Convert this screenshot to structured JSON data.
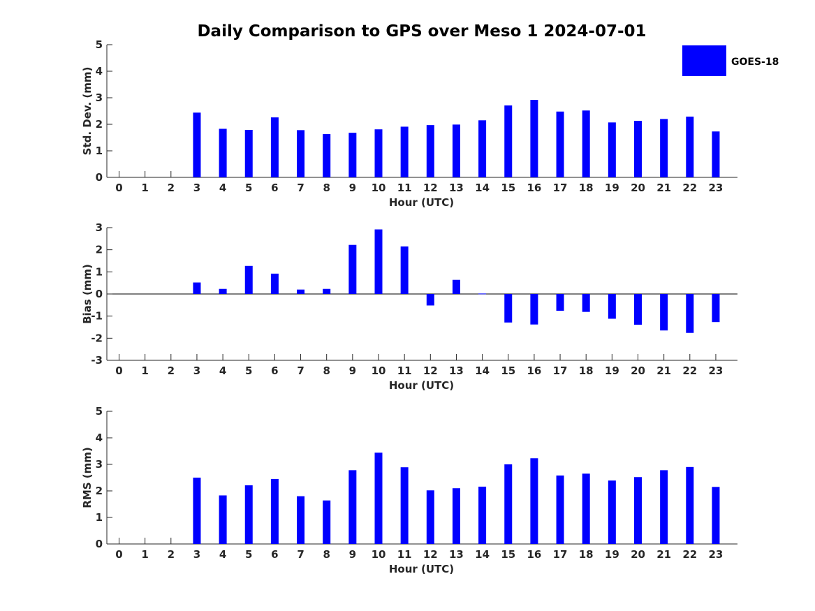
{
  "chart_data": [
    {
      "type": "bar",
      "title": "Daily Comparison to GPS over Meso 1 2024-07-01",
      "ylabel": "Std. Dev. (mm)",
      "xlabel": "Hour (UTC)",
      "ylim": [
        0,
        5
      ],
      "yticks": [
        0,
        1,
        2,
        3,
        4,
        5
      ],
      "categories": [
        "0",
        "1",
        "2",
        "3",
        "4",
        "5",
        "6",
        "7",
        "8",
        "9",
        "10",
        "11",
        "12",
        "13",
        "14",
        "15",
        "16",
        "17",
        "18",
        "19",
        "20",
        "21",
        "22",
        "23"
      ],
      "series": [
        {
          "name": "GOES-18",
          "color": "#0000ff",
          "values": [
            null,
            null,
            null,
            2.44,
            1.83,
            1.79,
            2.26,
            1.78,
            1.63,
            1.68,
            1.81,
            1.91,
            1.97,
            1.99,
            2.15,
            2.71,
            2.92,
            2.48,
            2.52,
            2.07,
            2.13,
            2.2,
            2.29,
            1.73
          ]
        }
      ],
      "legend": "top-right"
    },
    {
      "type": "bar",
      "title": "",
      "ylabel": "Bias (mm)",
      "xlabel": "Hour (UTC)",
      "ylim": [
        -3,
        3
      ],
      "yticks": [
        -3,
        -2,
        -1,
        0,
        1,
        2,
        3
      ],
      "categories": [
        "0",
        "1",
        "2",
        "3",
        "4",
        "5",
        "6",
        "7",
        "8",
        "9",
        "10",
        "11",
        "12",
        "13",
        "14",
        "15",
        "16",
        "17",
        "18",
        "19",
        "20",
        "21",
        "22",
        "23"
      ],
      "series": [
        {
          "name": "GOES-18",
          "color": "#0000ff",
          "values": [
            null,
            null,
            null,
            0.52,
            0.23,
            1.27,
            0.92,
            0.2,
            0.23,
            2.22,
            2.92,
            2.15,
            -0.52,
            0.64,
            0.02,
            -1.29,
            -1.38,
            -0.76,
            -0.81,
            -1.12,
            -1.39,
            -1.65,
            -1.76,
            -1.27
          ]
        }
      ]
    },
    {
      "type": "bar",
      "title": "",
      "ylabel": "RMS (mm)",
      "xlabel": "Hour (UTC)",
      "ylim": [
        0,
        5
      ],
      "yticks": [
        0,
        1,
        2,
        3,
        4,
        5
      ],
      "categories": [
        "0",
        "1",
        "2",
        "3",
        "4",
        "5",
        "6",
        "7",
        "8",
        "9",
        "10",
        "11",
        "12",
        "13",
        "14",
        "15",
        "16",
        "17",
        "18",
        "19",
        "20",
        "21",
        "22",
        "23"
      ],
      "series": [
        {
          "name": "GOES-18",
          "color": "#0000ff",
          "values": [
            null,
            null,
            null,
            2.5,
            1.83,
            2.21,
            2.45,
            1.8,
            1.64,
            2.78,
            3.44,
            2.89,
            2.02,
            2.1,
            2.16,
            3.0,
            3.23,
            2.58,
            2.65,
            2.39,
            2.52,
            2.78,
            2.9,
            2.15
          ]
        }
      ]
    }
  ]
}
